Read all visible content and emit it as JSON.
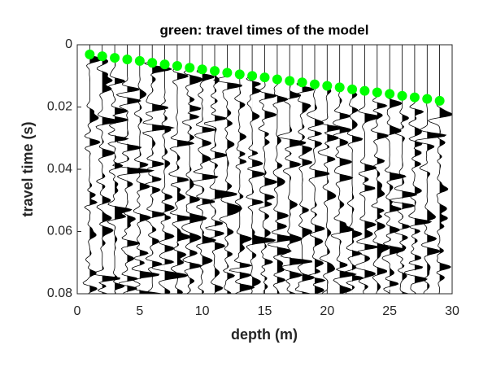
{
  "chart_data": {
    "type": "scatter",
    "title": "green: travel times of the model",
    "x_label": "depth (m)",
    "y_label": "travel time (s)",
    "xlim": [
      0,
      30
    ],
    "xticks": [
      0,
      5,
      10,
      15,
      20,
      25,
      30
    ],
    "ylim": [
      0.08,
      0
    ],
    "yticks": [
      0,
      0.02,
      0.04,
      0.06,
      0.08
    ],
    "y_reversed": true,
    "series": [
      {
        "name": "travel times",
        "color": "#00ff00",
        "x": [
          1,
          2,
          3,
          4,
          5,
          6,
          7,
          8,
          9,
          10,
          11,
          12,
          13,
          14,
          15,
          16,
          17,
          18,
          19,
          20,
          21,
          22,
          23,
          24,
          25,
          26,
          27,
          28,
          29
        ],
        "values": [
          0.0031,
          0.0037,
          0.0042,
          0.0047,
          0.0052,
          0.0058,
          0.0063,
          0.0068,
          0.0074,
          0.0079,
          0.0084,
          0.009,
          0.0095,
          0.01,
          0.0105,
          0.0111,
          0.0116,
          0.0121,
          0.0127,
          0.0132,
          0.0137,
          0.0143,
          0.0148,
          0.0153,
          0.0158,
          0.0164,
          0.0169,
          0.0174,
          0.018
        ]
      }
    ]
  }
}
